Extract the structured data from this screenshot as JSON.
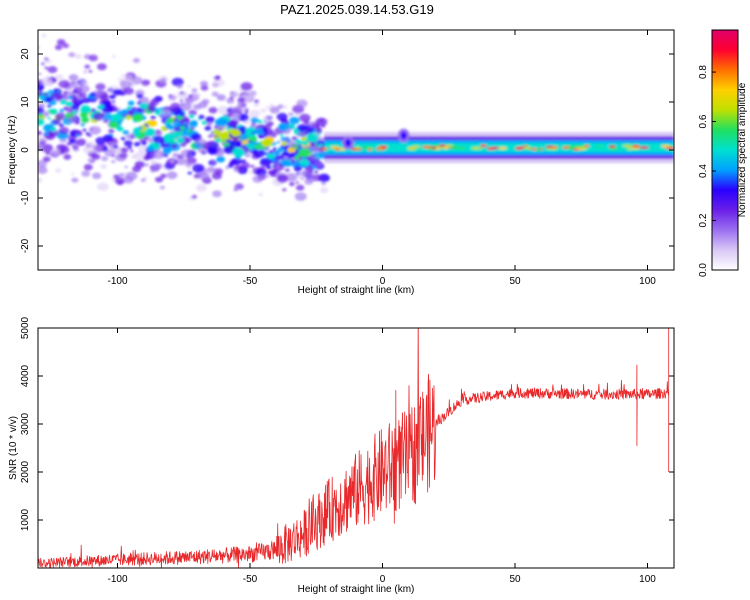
{
  "title": "PAZ1.2025.039.14.53.G19",
  "colors": {
    "snr_line": "#e8282a",
    "colormap": [
      "#ffffff",
      "#d9c7f5",
      "#9a6ff0",
      "#6a1fe8",
      "#2a00ff",
      "#00a0ff",
      "#00e0d0",
      "#20e060",
      "#c0e000",
      "#ffd000",
      "#ff7000",
      "#ff0030",
      "#e0006a"
    ]
  },
  "chart_data": [
    {
      "type": "heatmap",
      "title": "PAZ1.2025.039.14.53.G19",
      "xlabel": "Height of straight line (km)",
      "ylabel": "Frequency (Hz)",
      "xlim": [
        -130,
        110
      ],
      "ylim": [
        -25,
        25
      ],
      "xticks": [
        -100,
        -50,
        0,
        50,
        100
      ],
      "yticks": [
        -20,
        -10,
        0,
        10,
        20
      ],
      "colorbar": {
        "label": "Normalized spectral amplitude",
        "range": [
          0,
          0.97
        ],
        "ticks": [
          "0.0",
          "0.2",
          "0.4",
          "0.6",
          "0.8"
        ],
        "tick_values": [
          0.0,
          0.2,
          0.4,
          0.6,
          0.8
        ]
      },
      "features": {
        "scatter_region": {
          "x": [
            -130,
            -22
          ],
          "freq_start": 8,
          "freq_end": 0,
          "spread_hz": 14
        },
        "line_region": {
          "x": [
            -22,
            110
          ],
          "freq": 0.5,
          "freq_width": 1.8
        },
        "bumps": [
          {
            "x": 8,
            "freq": 3
          },
          {
            "x": -13,
            "freq": 1.5
          }
        ]
      }
    },
    {
      "type": "line",
      "xlabel": "Height of straight line (km)",
      "ylabel": "SNR (10 * v/v)",
      "xlim": [
        -130,
        110
      ],
      "ylim": [
        0,
        5000
      ],
      "xticks": [
        -100,
        -50,
        0,
        50,
        100
      ],
      "yticks": [
        1000,
        2000,
        3000,
        4000,
        5000
      ],
      "trend": [
        {
          "x": -130,
          "y": 100
        },
        {
          "x": -100,
          "y": 170
        },
        {
          "x": -70,
          "y": 230
        },
        {
          "x": -50,
          "y": 290
        },
        {
          "x": -40,
          "y": 380
        },
        {
          "x": -30,
          "y": 700
        },
        {
          "x": -20,
          "y": 1200
        },
        {
          "x": -10,
          "y": 1600
        },
        {
          "x": 0,
          "y": 2000
        },
        {
          "x": 10,
          "y": 2300
        },
        {
          "x": 20,
          "y": 3000
        },
        {
          "x": 30,
          "y": 3500
        },
        {
          "x": 50,
          "y": 3650
        },
        {
          "x": 80,
          "y": 3620
        },
        {
          "x": 100,
          "y": 3620
        },
        {
          "x": 108,
          "y": 3650
        }
      ],
      "spikes": [
        {
          "x": 5,
          "y": 3700
        },
        {
          "x": 10,
          "y": 3800
        },
        {
          "x": 96,
          "y": 4230
        },
        {
          "x": 96,
          "y": 2550
        },
        {
          "x": 108,
          "y": 5000
        },
        {
          "x": 108,
          "y": 2000
        }
      ]
    }
  ]
}
